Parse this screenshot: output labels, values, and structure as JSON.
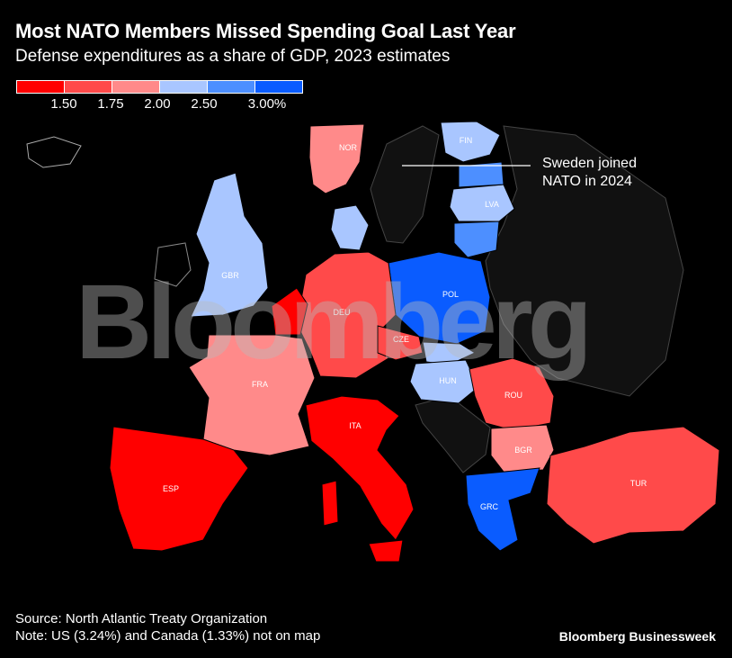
{
  "header": {
    "title": "Most NATO Members Missed Spending Goal Last Year",
    "subtitle": "Defense expenditures as a share of GDP, 2023 estimates"
  },
  "legend": {
    "colors": [
      "#ff0000",
      "#ff4a4a",
      "#ff8a8a",
      "#a9c6ff",
      "#4d8fff",
      "#0a5cff"
    ],
    "ticks": [
      "1.50",
      "1.75",
      "2.00",
      "2.50",
      "3.00%"
    ]
  },
  "countries": [
    {
      "code": "NOR",
      "color": "#ff8a8a"
    },
    {
      "code": "FIN",
      "color": "#a9c6ff"
    },
    {
      "code": "LVA",
      "color": "#a9c6ff"
    },
    {
      "code": "GBR",
      "color": "#a9c6ff"
    },
    {
      "code": "POL",
      "color": "#0a5cff"
    },
    {
      "code": "DEU",
      "color": "#ff4a4a"
    },
    {
      "code": "CZE",
      "color": "#ff4a4a"
    },
    {
      "code": "FRA",
      "color": "#ff8a8a"
    },
    {
      "code": "HUN",
      "color": "#a9c6ff"
    },
    {
      "code": "ROU",
      "color": "#ff4a4a"
    },
    {
      "code": "BGR",
      "color": "#ff8a8a"
    },
    {
      "code": "ITA",
      "color": "#ff0000"
    },
    {
      "code": "ESP",
      "color": "#ff0000"
    },
    {
      "code": "GRC",
      "color": "#0a5cff"
    },
    {
      "code": "TUR",
      "color": "#ff4a4a"
    }
  ],
  "annotation": "Sweden joined NATO in 2024",
  "watermark": "Bloomberg",
  "footer": {
    "source": "Source: North Atlantic Treaty Organization",
    "note": "Note: US (3.24%) and Canada (1.33%) not on map",
    "brand": "Bloomberg Businessweek"
  }
}
